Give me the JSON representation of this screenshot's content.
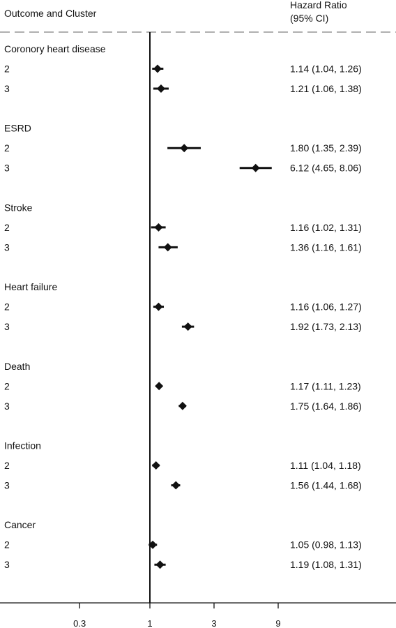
{
  "chart_data": {
    "type": "forest",
    "header": {
      "left": "Outcome and Cluster",
      "right_line1": "Hazard Ratio",
      "right_line2": "(95% CI)"
    },
    "x_scale": "log",
    "reference_value": 1,
    "x_ticks": [
      {
        "value": 0.3,
        "label": "0.3"
      },
      {
        "value": 1,
        "label": "1"
      },
      {
        "value": 3,
        "label": "3"
      },
      {
        "value": 9,
        "label": "9"
      }
    ],
    "groups": [
      {
        "name": "Coronory heart disease",
        "rows": [
          {
            "cluster": "2",
            "hr": 1.14,
            "lo": 1.04,
            "hi": 1.26,
            "text": "1.14 (1.04, 1.26)"
          },
          {
            "cluster": "3",
            "hr": 1.21,
            "lo": 1.06,
            "hi": 1.38,
            "text": "1.21 (1.06, 1.38)"
          }
        ]
      },
      {
        "name": "ESRD",
        "rows": [
          {
            "cluster": "2",
            "hr": 1.8,
            "lo": 1.35,
            "hi": 2.39,
            "text": "1.80 (1.35, 2.39)"
          },
          {
            "cluster": "3",
            "hr": 6.12,
            "lo": 4.65,
            "hi": 8.06,
            "text": "6.12 (4.65, 8.06)"
          }
        ]
      },
      {
        "name": "Stroke",
        "rows": [
          {
            "cluster": "2",
            "hr": 1.16,
            "lo": 1.02,
            "hi": 1.31,
            "text": "1.16 (1.02, 1.31)"
          },
          {
            "cluster": "3",
            "hr": 1.36,
            "lo": 1.16,
            "hi": 1.61,
            "text": "1.36 (1.16, 1.61)"
          }
        ]
      },
      {
        "name": "Heart failure",
        "rows": [
          {
            "cluster": "2",
            "hr": 1.16,
            "lo": 1.06,
            "hi": 1.27,
            "text": "1.16 (1.06, 1.27)"
          },
          {
            "cluster": "3",
            "hr": 1.92,
            "lo": 1.73,
            "hi": 2.13,
            "text": "1.92 (1.73, 2.13)"
          }
        ]
      },
      {
        "name": "Death",
        "rows": [
          {
            "cluster": "2",
            "hr": 1.17,
            "lo": 1.11,
            "hi": 1.23,
            "text": "1.17 (1.11, 1.23)"
          },
          {
            "cluster": "3",
            "hr": 1.75,
            "lo": 1.64,
            "hi": 1.86,
            "text": "1.75 (1.64, 1.86)"
          }
        ]
      },
      {
        "name": "Infection",
        "rows": [
          {
            "cluster": "2",
            "hr": 1.11,
            "lo": 1.04,
            "hi": 1.18,
            "text": "1.11 (1.04, 1.18)"
          },
          {
            "cluster": "3",
            "hr": 1.56,
            "lo": 1.44,
            "hi": 1.68,
            "text": "1.56 (1.44, 1.68)"
          }
        ]
      },
      {
        "name": "Cancer",
        "rows": [
          {
            "cluster": "2",
            "hr": 1.05,
            "lo": 0.98,
            "hi": 1.13,
            "text": "1.05 (0.98, 1.13)"
          },
          {
            "cluster": "3",
            "hr": 1.19,
            "lo": 1.08,
            "hi": 1.31,
            "text": "1.19 (1.08, 1.31)"
          }
        ]
      }
    ]
  }
}
